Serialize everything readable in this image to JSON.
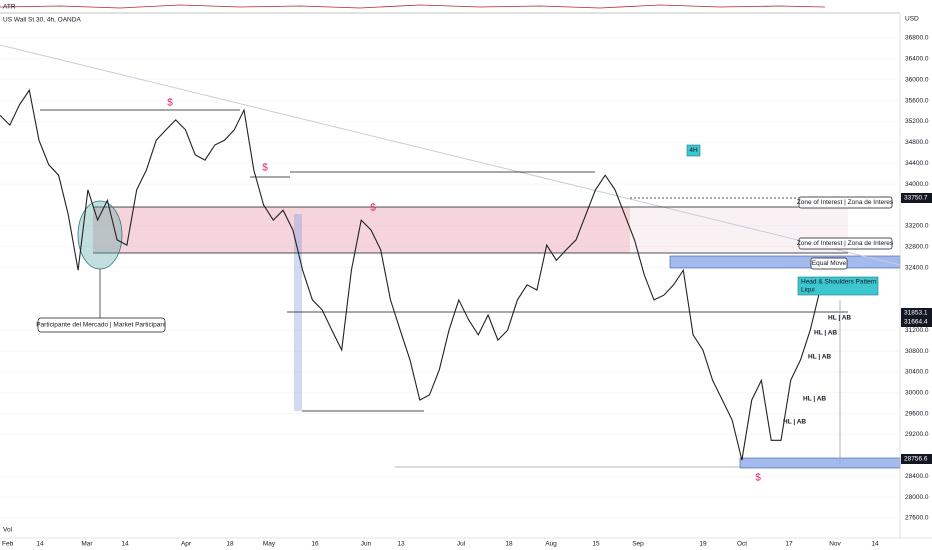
{
  "header": {
    "symbol": "US Wall St 30, 4h, OANDA",
    "indicator": "ATR",
    "currency": "USD",
    "volume": "Vol",
    "timeframe": "4H"
  },
  "chart_data": {
    "type": "line",
    "color": "#222222",
    "x_labels": [
      "Feb",
      "14",
      "Mar",
      "14",
      "Apr",
      "18",
      "May",
      "16",
      "Jun",
      "13",
      "Jul",
      "18",
      "Aug",
      "15",
      "Sep",
      "19",
      "Oct",
      "17",
      "Nov",
      "14"
    ],
    "values": [
      35320,
      35130,
      35520,
      35800,
      34840,
      34370,
      34170,
      33410,
      32350,
      33890,
      33310,
      33690,
      32930,
      32830,
      33890,
      34270,
      34840,
      35040,
      35230,
      35040,
      34560,
      34460,
      34750,
      34840,
      35040,
      35420,
      34270,
      33600,
      33310,
      33500,
      33120,
      32350,
      31780,
      31590,
      31200,
      30820,
      32350,
      33310,
      33120,
      32740,
      31780,
      31200,
      30630,
      29860,
      29960,
      30440,
      31200,
      31780,
      31400,
      31110,
      31490,
      31010,
      31200,
      31780,
      32070,
      31970,
      32830,
      32540,
      32740,
      32930,
      33410,
      33890,
      34170,
      33890,
      33410,
      32930,
      32260,
      31780,
      31870,
      32070,
      32350,
      31110,
      30820,
      30240,
      29860,
      29480,
      28710,
      29860,
      30240,
      29090,
      29090,
      30240,
      30630,
      31200,
      31970
    ],
    "ylim": [
      27600,
      36800
    ],
    "yticks": [
      {
        "value": 36800,
        "label": "36800.0"
      },
      {
        "value": 36400,
        "label": "36400.0"
      },
      {
        "value": 36000,
        "label": "36000.0"
      },
      {
        "value": 35600,
        "label": "35600.0"
      },
      {
        "value": 35200,
        "label": "35200.0"
      },
      {
        "value": 34800,
        "label": "34800.0"
      },
      {
        "value": 34400,
        "label": "34400.0"
      },
      {
        "value": 34000,
        "label": "34000.0"
      },
      {
        "value": 33200,
        "label": "33200.0"
      },
      {
        "value": 32800,
        "label": "32800.0"
      },
      {
        "value": 32400,
        "label": "32400.0"
      },
      {
        "value": 31200,
        "label": "31200.0"
      },
      {
        "value": 30800,
        "label": "30800.0"
      },
      {
        "value": 30400,
        "label": "30400.0"
      },
      {
        "value": 30000,
        "label": "30000.0"
      },
      {
        "value": 29600,
        "label": "29600.0"
      },
      {
        "value": 29200,
        "label": "29200.0"
      },
      {
        "value": 28400,
        "label": "28400.0"
      },
      {
        "value": 28000,
        "label": "28000.0"
      },
      {
        "value": 27600,
        "label": "27600.0"
      }
    ],
    "grid": true
  },
  "annotations": {
    "market_participant": "Participante del Mercado | Market Participant",
    "zone_1": "Zone of Interest | Zona de Interes",
    "zone_2": "Zone of Interest | Zona de Interes",
    "equal_move": "Equal Move",
    "hs_line1": "Head & Shoulders Pattern",
    "hs_line2": "Liqui",
    "hl": [
      "HL | AB",
      "HL | AB",
      "HL | AB",
      "HL | AB",
      "HL | AB"
    ],
    "dollar": [
      "$",
      "$",
      "$",
      "$"
    ]
  },
  "price_labels": [
    "33750.7",
    "31853.1",
    "31664.4",
    "28756.6"
  ]
}
